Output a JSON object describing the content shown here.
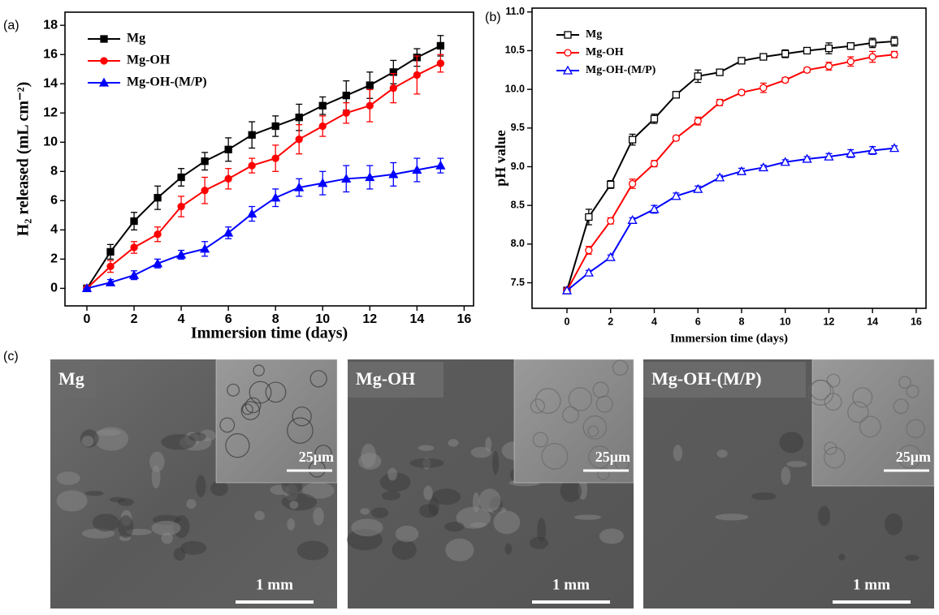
{
  "chart_data": [
    {
      "type": "line",
      "panel_label": "(a)",
      "x_label": "Immersion time (days)",
      "y_label": "H₂ released (mL cm⁻²)",
      "x": [
        0,
        1,
        2,
        3,
        4,
        5,
        6,
        7,
        8,
        9,
        10,
        11,
        12,
        13,
        14,
        15
      ],
      "xlim": [
        -0.93,
        16.4
      ],
      "ylim": [
        -1.2,
        18.9
      ],
      "xticks": [
        0,
        2,
        4,
        6,
        8,
        10,
        12,
        14,
        16
      ],
      "yticks": [
        0,
        2,
        4,
        6,
        8,
        10,
        12,
        14,
        16,
        18
      ],
      "legend": "upper left",
      "marker_fill": "filled",
      "series": [
        {
          "name": "Mg",
          "color": "#000000",
          "marker": "square",
          "values": [
            0,
            2.5,
            4.6,
            6.2,
            7.6,
            8.7,
            9.5,
            10.5,
            11.1,
            11.7,
            12.5,
            13.2,
            13.9,
            14.8,
            15.8,
            16.6
          ],
          "errors": [
            0,
            0.5,
            0.6,
            0.8,
            0.6,
            0.6,
            0.8,
            0.9,
            0.7,
            0.9,
            0.6,
            1.0,
            0.9,
            0.8,
            0.6,
            0.7
          ]
        },
        {
          "name": "Mg-OH",
          "color": "#ff0000",
          "marker": "circle",
          "values": [
            0,
            1.5,
            2.8,
            3.7,
            5.6,
            6.7,
            7.5,
            8.4,
            8.9,
            10.2,
            11.1,
            12.0,
            12.5,
            13.7,
            14.6,
            15.4
          ],
          "errors": [
            0,
            0.4,
            0.4,
            0.5,
            0.7,
            0.9,
            0.7,
            0.5,
            0.9,
            1.0,
            0.7,
            0.7,
            1.1,
            1.0,
            1.3,
            0.6
          ]
        },
        {
          "name": "Mg-OH-(M/P)",
          "color": "#0000ff",
          "marker": "triangle",
          "values": [
            0,
            0.4,
            0.9,
            1.7,
            2.3,
            2.7,
            3.8,
            5.1,
            6.2,
            6.9,
            7.2,
            7.5,
            7.6,
            7.8,
            8.1,
            8.4
          ],
          "errors": [
            0,
            0.2,
            0.3,
            0.3,
            0.3,
            0.5,
            0.4,
            0.5,
            0.6,
            0.6,
            0.8,
            0.9,
            0.8,
            0.8,
            0.8,
            0.5
          ]
        }
      ]
    },
    {
      "type": "line",
      "panel_label": "(b)",
      "x_label": "Immersion time (days)",
      "y_label": "pH value",
      "x": [
        0,
        1,
        2,
        3,
        4,
        5,
        6,
        7,
        8,
        9,
        10,
        11,
        12,
        13,
        14,
        15
      ],
      "xlim": [
        -1.6,
        16.45
      ],
      "ylim": [
        7.17,
        11.05
      ],
      "xticks": [
        0,
        2,
        4,
        6,
        8,
        10,
        12,
        14,
        16
      ],
      "yticks": [
        7.5,
        {
          "value": 8,
          "label": "8.0"
        },
        8.5,
        {
          "value": 9,
          "label": "9.0"
        },
        9.5,
        {
          "value": 10,
          "label": "10.0"
        },
        10.5,
        {
          "value": 11,
          "label": "11.0"
        }
      ],
      "legend": "upper left",
      "marker_fill": "open",
      "series": [
        {
          "name": "Mg",
          "color": "#000000",
          "marker": "square",
          "values": [
            7.4,
            8.35,
            8.77,
            9.35,
            9.62,
            9.93,
            10.17,
            10.22,
            10.37,
            10.42,
            10.46,
            10.5,
            10.53,
            10.56,
            10.6,
            10.62
          ],
          "errors": [
            0,
            0.1,
            0.05,
            0.07,
            0.06,
            0.04,
            0.08,
            0.03,
            0.04,
            0.03,
            0.05,
            0.03,
            0.07,
            0.04,
            0.06,
            0.06
          ]
        },
        {
          "name": "Mg-OH",
          "color": "#ff0000",
          "marker": "circle",
          "values": [
            7.4,
            7.92,
            8.3,
            8.78,
            9.04,
            9.37,
            9.59,
            9.83,
            9.96,
            10.02,
            10.12,
            10.25,
            10.3,
            10.36,
            10.42,
            10.45
          ],
          "errors": [
            0,
            0.05,
            0.04,
            0.06,
            0.04,
            0.03,
            0.05,
            0.04,
            0.03,
            0.06,
            0.03,
            0.03,
            0.05,
            0.06,
            0.07,
            0.04
          ]
        },
        {
          "name": "Mg-OH-(M/P)",
          "color": "#0000ff",
          "marker": "triangle",
          "values": [
            7.4,
            7.63,
            7.83,
            8.31,
            8.45,
            8.62,
            8.71,
            8.86,
            8.94,
            8.99,
            9.06,
            9.1,
            9.13,
            9.17,
            9.21,
            9.24
          ],
          "errors": [
            0,
            0.03,
            0.03,
            0.03,
            0.05,
            0.04,
            0.04,
            0.03,
            0.04,
            0.03,
            0.03,
            0.03,
            0.04,
            0.05,
            0.05,
            0.03
          ]
        }
      ]
    }
  ],
  "panel_c": {
    "label": "(c)",
    "images": [
      {
        "label": "Mg",
        "inset_scale": "25μm",
        "scale": "1 mm"
      },
      {
        "label": "Mg-OH",
        "inset_scale": "25μm",
        "scale": "1 mm"
      },
      {
        "label": "Mg-OH-(M/P)",
        "inset_scale": "25μm",
        "scale": "1 mm"
      }
    ]
  }
}
